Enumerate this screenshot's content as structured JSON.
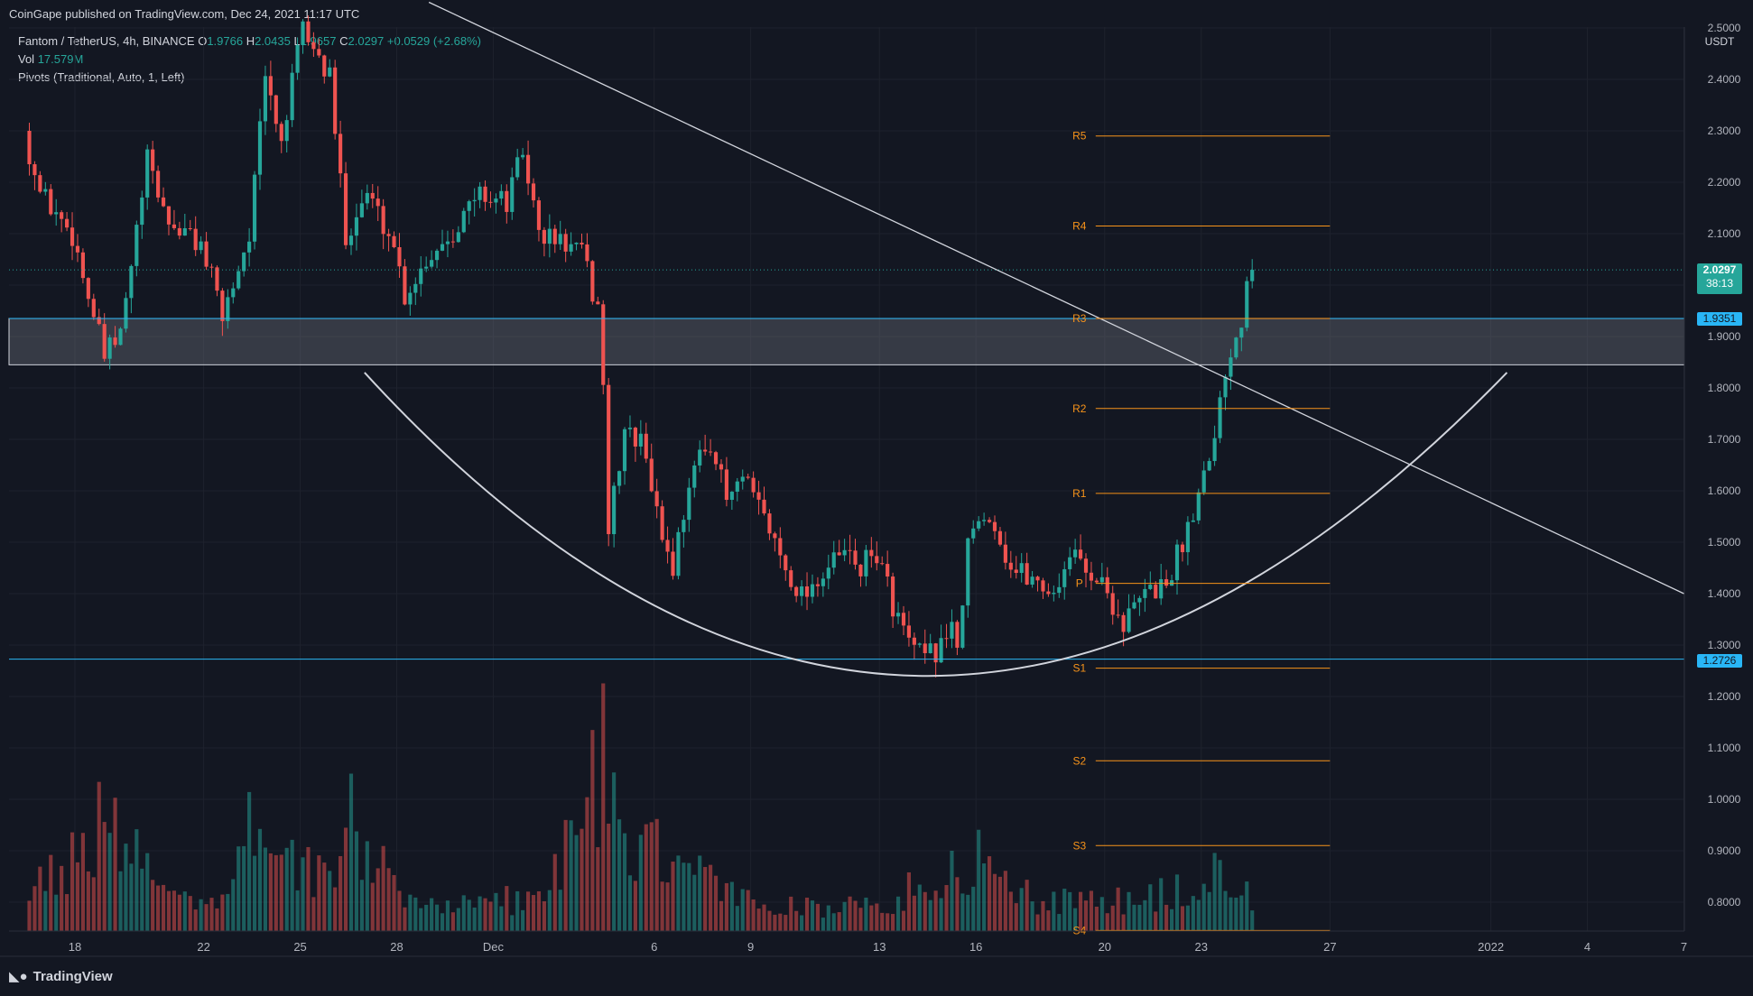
{
  "publisher": "CoinGape published on TradingView.com, Dec 24, 2021 11:17 UTC",
  "legend": {
    "symbol": "Fantom / TetherUS, 4h, BINANCE",
    "ohlc_prefix": "O",
    "open": "1.9766",
    "h_label": "H",
    "high": "2.0435",
    "l_label": "L",
    "low": "1.9657",
    "c_label": "C",
    "close": "2.0297",
    "change": "+0.0529 (+2.68%)",
    "vol_label": "Vol",
    "vol_value": "17.579M",
    "pivots_label": "Pivots (Traditional, Auto, 1, Left)"
  },
  "axis": {
    "currency": "USDT",
    "current_price": "2.0297",
    "countdown": "38:13",
    "level_upper": "1.9351",
    "level_lower": "1.2726"
  },
  "logo_text": "TradingView",
  "colors": {
    "background": "#131722",
    "up": "#26a69a",
    "down": "#ef5350",
    "pivot": "#f7931a",
    "support_line": "#29b6f6",
    "trendline": "#d1d4dc"
  },
  "chart_data": {
    "type": "candlestick",
    "title": "Fantom / TetherUS, 4h, BINANCE",
    "ylim": [
      0.75,
      2.5
    ],
    "y_ticks": [
      "0.8000",
      "0.9000",
      "1.0000",
      "1.1000",
      "1.2000",
      "1.3000",
      "1.4000",
      "1.5000",
      "1.6000",
      "1.7000",
      "1.8000",
      "1.9000",
      "2.0000",
      "2.1000",
      "2.2000",
      "2.3000",
      "2.4000",
      "2.5000"
    ],
    "x_ticks": [
      {
        "label": "18",
        "date": "2021-11-18"
      },
      {
        "label": "22",
        "date": "2021-11-22"
      },
      {
        "label": "25",
        "date": "2021-11-25"
      },
      {
        "label": "28",
        "date": "2021-11-28"
      },
      {
        "label": "Dec",
        "date": "2021-12-01"
      },
      {
        "label": "6",
        "date": "2021-12-06"
      },
      {
        "label": "9",
        "date": "2021-12-09"
      },
      {
        "label": "13",
        "date": "2021-12-13"
      },
      {
        "label": "16",
        "date": "2021-12-16"
      },
      {
        "label": "20",
        "date": "2021-12-20"
      },
      {
        "label": "23",
        "date": "2021-12-23"
      },
      {
        "label": "27",
        "date": "2021-12-27"
      },
      {
        "label": "2022",
        "date": "2022-01-01"
      },
      {
        "label": "4",
        "date": "2022-01-04"
      },
      {
        "label": "7",
        "date": "2022-01-07"
      }
    ],
    "anchors": [
      {
        "date": "2021-11-16T12:00",
        "price": 2.3
      },
      {
        "date": "2021-11-17T00:00",
        "price": 2.18
      },
      {
        "date": "2021-11-18T00:00",
        "price": 2.1
      },
      {
        "date": "2021-11-19T00:00",
        "price": 1.86
      },
      {
        "date": "2021-11-19T12:00",
        "price": 1.9
      },
      {
        "date": "2021-11-20T08:00",
        "price": 2.24
      },
      {
        "date": "2021-11-21T00:00",
        "price": 2.12
      },
      {
        "date": "2021-11-22T00:00",
        "price": 2.08
      },
      {
        "date": "2021-11-22T16:00",
        "price": 1.94
      },
      {
        "date": "2021-11-23T12:00",
        "price": 2.1
      },
      {
        "date": "2021-11-24T00:00",
        "price": 2.4
      },
      {
        "date": "2021-11-24T12:00",
        "price": 2.28
      },
      {
        "date": "2021-11-25T04:00",
        "price": 2.5
      },
      {
        "date": "2021-11-26T00:00",
        "price": 2.4
      },
      {
        "date": "2021-11-26T12:00",
        "price": 2.1
      },
      {
        "date": "2021-11-27T04:00",
        "price": 2.18
      },
      {
        "date": "2021-11-28T00:00",
        "price": 2.08
      },
      {
        "date": "2021-11-28T08:00",
        "price": 1.98
      },
      {
        "date": "2021-11-29T00:00",
        "price": 2.05
      },
      {
        "date": "2021-11-30T00:00",
        "price": 2.12
      },
      {
        "date": "2021-11-30T16:00",
        "price": 2.18
      },
      {
        "date": "2021-12-01T12:00",
        "price": 2.16
      },
      {
        "date": "2021-12-02T00:00",
        "price": 2.26
      },
      {
        "date": "2021-12-02T12:00",
        "price": 2.1
      },
      {
        "date": "2021-12-03T08:00",
        "price": 2.08
      },
      {
        "date": "2021-12-03T20:00",
        "price": 2.06
      },
      {
        "date": "2021-12-04T08:00",
        "price": 1.95
      },
      {
        "date": "2021-12-04T12:00",
        "price": 1.82
      },
      {
        "date": "2021-12-04T16:00",
        "price": 1.52
      },
      {
        "date": "2021-12-05T04:00",
        "price": 1.72
      },
      {
        "date": "2021-12-05T20:00",
        "price": 1.68
      },
      {
        "date": "2021-12-06T04:00",
        "price": 1.55
      },
      {
        "date": "2021-12-06T16:00",
        "price": 1.45
      },
      {
        "date": "2021-12-07T04:00",
        "price": 1.62
      },
      {
        "date": "2021-12-07T20:00",
        "price": 1.7
      },
      {
        "date": "2021-12-08T08:00",
        "price": 1.58
      },
      {
        "date": "2021-12-08T20:00",
        "price": 1.62
      },
      {
        "date": "2021-12-09T12:00",
        "price": 1.55
      },
      {
        "date": "2021-12-10T04:00",
        "price": 1.45
      },
      {
        "date": "2021-12-10T16:00",
        "price": 1.4
      },
      {
        "date": "2021-12-11T12:00",
        "price": 1.45
      },
      {
        "date": "2021-12-12T00:00",
        "price": 1.48
      },
      {
        "date": "2021-12-12T12:00",
        "price": 1.45
      },
      {
        "date": "2021-12-13T00:00",
        "price": 1.48
      },
      {
        "date": "2021-12-13T12:00",
        "price": 1.38
      },
      {
        "date": "2021-12-14T00:00",
        "price": 1.3
      },
      {
        "date": "2021-12-14T12:00",
        "price": 1.27
      },
      {
        "date": "2021-12-15T00:00",
        "price": 1.3
      },
      {
        "date": "2021-12-15T08:00",
        "price": 1.35
      },
      {
        "date": "2021-12-15T12:00",
        "price": 1.27
      },
      {
        "date": "2021-12-15T20:00",
        "price": 1.5
      },
      {
        "date": "2021-12-16T12:00",
        "price": 1.56
      },
      {
        "date": "2021-12-17T04:00",
        "price": 1.45
      },
      {
        "date": "2021-12-17T20:00",
        "price": 1.43
      },
      {
        "date": "2021-12-18T12:00",
        "price": 1.4
      },
      {
        "date": "2021-12-19T00:00",
        "price": 1.48
      },
      {
        "date": "2021-12-19T12:00",
        "price": 1.45
      },
      {
        "date": "2021-12-20T00:00",
        "price": 1.42
      },
      {
        "date": "2021-12-20T16:00",
        "price": 1.34
      },
      {
        "date": "2021-12-21T08:00",
        "price": 1.4
      },
      {
        "date": "2021-12-22T00:00",
        "price": 1.42
      },
      {
        "date": "2021-12-22T12:00",
        "price": 1.5
      },
      {
        "date": "2021-12-23T00:00",
        "price": 1.6
      },
      {
        "date": "2021-12-23T12:00",
        "price": 1.72
      },
      {
        "date": "2021-12-24T00:00",
        "price": 1.88
      },
      {
        "date": "2021-12-24T08:00",
        "price": 1.93
      },
      {
        "date": "2021-12-24T12:00",
        "price": 2.03
      }
    ],
    "volume_range": [
      0,
      40
    ],
    "volume_profile": [
      {
        "date": "2021-11-16T12:00",
        "volume": 8
      },
      {
        "date": "2021-11-19T00:00",
        "volume": 22
      },
      {
        "date": "2021-11-20T08:00",
        "volume": 10
      },
      {
        "date": "2021-11-22T12:00",
        "volume": 6
      },
      {
        "date": "2021-11-23T20:00",
        "volume": 27
      },
      {
        "date": "2021-11-24T20:00",
        "volume": 14
      },
      {
        "date": "2021-11-26T00:00",
        "volume": 10
      },
      {
        "date": "2021-11-26T12:00",
        "volume": 23
      },
      {
        "date": "2021-11-28T00:00",
        "volume": 6
      },
      {
        "date": "2021-12-01T00:00",
        "volume": 6
      },
      {
        "date": "2021-12-02T12:00",
        "volume": 7
      },
      {
        "date": "2021-12-04T12:00",
        "volume": 38
      },
      {
        "date": "2021-12-05T00:00",
        "volume": 14
      },
      {
        "date": "2021-12-06T12:00",
        "volume": 16
      },
      {
        "date": "2021-12-08T00:00",
        "volume": 8
      },
      {
        "date": "2021-12-10T00:00",
        "volume": 5
      },
      {
        "date": "2021-12-13T00:00",
        "volume": 5
      },
      {
        "date": "2021-12-15T20:00",
        "volume": 15
      },
      {
        "date": "2021-12-18T00:00",
        "volume": 6
      },
      {
        "date": "2021-12-20T12:00",
        "volume": 6
      },
      {
        "date": "2021-12-22T12:00",
        "volume": 8
      },
      {
        "date": "2021-12-23T20:00",
        "volume": 13
      },
      {
        "date": "2021-12-24T12:00",
        "volume": 7
      }
    ],
    "pivots": [
      {
        "label": "R5",
        "value": 2.29
      },
      {
        "label": "R4",
        "value": 2.115
      },
      {
        "label": "R3",
        "value": 1.935
      },
      {
        "label": "R2",
        "value": 1.76
      },
      {
        "label": "R1",
        "value": 1.595
      },
      {
        "label": "P",
        "value": 1.42
      },
      {
        "label": "S1",
        "value": 1.255
      },
      {
        "label": "S2",
        "value": 1.075
      },
      {
        "label": "S3",
        "value": 0.91
      },
      {
        "label": "S4",
        "value": 0.745
      }
    ],
    "pivot_span": [
      "2021-12-20T00:00",
      "2021-12-27T00:00"
    ],
    "support_zone": [
      1.845,
      1.935
    ],
    "horizontal_lines": [
      1.9351,
      1.2726
    ],
    "last_price": 2.0297,
    "trendline": [
      {
        "date": "2021-11-29T00:00",
        "price": 2.55
      },
      {
        "date": "2022-01-07T00:00",
        "price": 1.4
      }
    ],
    "rounding_bottom": [
      {
        "date": "2021-11-27T00:00",
        "price": 1.83
      },
      {
        "date": "2021-12-14T12:00",
        "price": 1.24
      },
      {
        "date": "2022-01-01T12:00",
        "price": 1.83
      }
    ]
  }
}
